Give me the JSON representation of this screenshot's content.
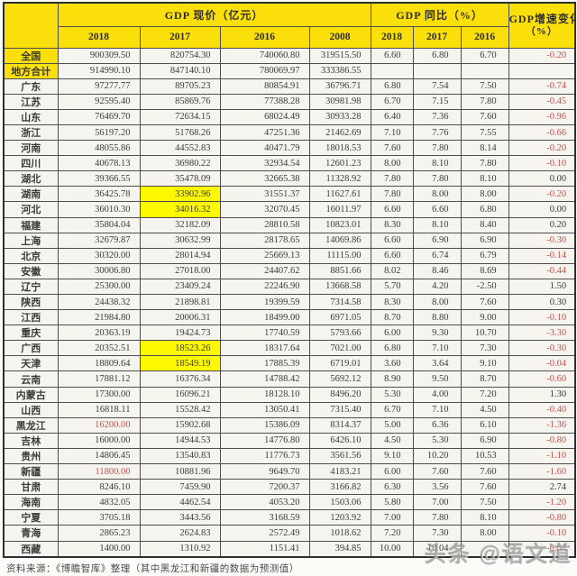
{
  "chart_data": {
    "type": "table",
    "group_headers": {
      "price": "GDP 现价（亿元）",
      "growth": "GDP 同比（%）",
      "change_line1": "GDP增速变化",
      "change_line2": "（%）"
    },
    "price_years": [
      "2018",
      "2017",
      "2016",
      "2008"
    ],
    "growth_years": [
      "2018",
      "2017",
      "2016"
    ],
    "rows": [
      {
        "region": "全国",
        "region_yellow": true,
        "values": [
          "900309.50",
          "820754.30",
          "740060.80",
          "319515.50",
          "6.60",
          "6.80",
          "6.70",
          "-0.20"
        ]
      },
      {
        "region": "地方合计",
        "region_yellow": true,
        "values": [
          "914990.10",
          "847140.10",
          "780069.97",
          "333386.55",
          "",
          "",
          "",
          ""
        ]
      },
      {
        "region": "广东",
        "values": [
          "97277.77",
          "89705.23",
          "80854.91",
          "36796.71",
          "6.80",
          "7.54",
          "7.50",
          "-0.74"
        ]
      },
      {
        "region": "江苏",
        "values": [
          "92595.40",
          "85869.76",
          "77388.28",
          "30981.98",
          "6.70",
          "7.15",
          "7.80",
          "-0.45"
        ]
      },
      {
        "region": "山东",
        "values": [
          "76469.70",
          "72634.15",
          "68024.49",
          "30933.28",
          "6.40",
          "7.36",
          "7.60",
          "-0.96"
        ]
      },
      {
        "region": "浙江",
        "values": [
          "56197.20",
          "51768.26",
          "47251.36",
          "21462.69",
          "7.10",
          "7.76",
          "7.55",
          "-0.66"
        ]
      },
      {
        "region": "河南",
        "values": [
          "48055.86",
          "44552.83",
          "40471.79",
          "18018.53",
          "7.60",
          "7.80",
          "8.14",
          "-0.20"
        ]
      },
      {
        "region": "四川",
        "values": [
          "40678.13",
          "36980.22",
          "32934.54",
          "12601.23",
          "8.00",
          "8.10",
          "7.80",
          "-0.10"
        ]
      },
      {
        "region": "湖北",
        "values": [
          "39366.55",
          "35478.09",
          "32665.38",
          "11328.92",
          "7.80",
          "7.80",
          "8.10",
          "0.00"
        ]
      },
      {
        "region": "湖南",
        "highlight": [
          1
        ],
        "values": [
          "36425.78",
          "33902.96",
          "31551.37",
          "11627.61",
          "7.80",
          "8.00",
          "8.00",
          "-0.20"
        ]
      },
      {
        "region": "河北",
        "highlight": [
          1
        ],
        "values": [
          "36010.30",
          "34016.32",
          "32070.45",
          "16011.97",
          "6.60",
          "6.60",
          "6.80",
          "0.00"
        ]
      },
      {
        "region": "福建",
        "values": [
          "35804.04",
          "32182.09",
          "28810.58",
          "10823.01",
          "8.30",
          "8.10",
          "8.40",
          "0.20"
        ]
      },
      {
        "region": "上海",
        "values": [
          "32679.87",
          "30632.99",
          "28178.65",
          "14069.86",
          "6.60",
          "6.90",
          "6.90",
          "-0.30"
        ]
      },
      {
        "region": "北京",
        "values": [
          "30320.00",
          "28014.94",
          "25669.13",
          "11115.00",
          "6.60",
          "6.74",
          "6.79",
          "-0.14"
        ]
      },
      {
        "region": "安徽",
        "values": [
          "30006.80",
          "27018.00",
          "24407.62",
          "8851.66",
          "8.02",
          "8.46",
          "8.69",
          "-0.44"
        ]
      },
      {
        "region": "辽宁",
        "values": [
          "25300.00",
          "23409.24",
          "22246.90",
          "13668.58",
          "5.70",
          "4.20",
          "-2.50",
          "1.50"
        ]
      },
      {
        "region": "陕西",
        "values": [
          "24438.32",
          "21898.81",
          "19399.59",
          "7314.58",
          "8.30",
          "8.00",
          "7.60",
          "0.30"
        ]
      },
      {
        "region": "江西",
        "values": [
          "21984.80",
          "20006.31",
          "18499.00",
          "6971.05",
          "8.70",
          "8.80",
          "9.00",
          "-0.10"
        ]
      },
      {
        "region": "重庆",
        "values": [
          "20363.19",
          "19424.73",
          "17740.59",
          "5793.66",
          "6.00",
          "9.30",
          "10.70",
          "-3.30"
        ]
      },
      {
        "region": "广西",
        "highlight": [
          1
        ],
        "values": [
          "20352.51",
          "18523.26",
          "18317.64",
          "7021.00",
          "6.80",
          "7.10",
          "7.30",
          "-0.30"
        ]
      },
      {
        "region": "天津",
        "highlight": [
          1
        ],
        "values": [
          "18809.64",
          "18549.19",
          "17885.39",
          "6719.01",
          "3.60",
          "3.64",
          "9.10",
          "-0.04"
        ]
      },
      {
        "region": "云南",
        "values": [
          "17881.12",
          "16376.34",
          "14788.42",
          "5692.12",
          "8.90",
          "9.50",
          "8.70",
          "-0.60"
        ]
      },
      {
        "region": "内蒙古",
        "values": [
          "17300.00",
          "16096.21",
          "18128.10",
          "8496.20",
          "5.30",
          "4.00",
          "7.20",
          "1.30"
        ]
      },
      {
        "region": "山西",
        "values": [
          "16818.11",
          "15528.42",
          "13050.41",
          "7315.40",
          "6.70",
          "7.10",
          "4.50",
          "-0.40"
        ]
      },
      {
        "region": "黑龙江",
        "red": [
          0
        ],
        "values": [
          "16200.00",
          "15902.68",
          "15386.09",
          "8314.37",
          "5.00",
          "6.36",
          "6.10",
          "-1.36"
        ]
      },
      {
        "region": "吉林",
        "values": [
          "16000.00",
          "14944.53",
          "14776.80",
          "6426.10",
          "4.50",
          "5.30",
          "6.90",
          "-0.80"
        ]
      },
      {
        "region": "贵州",
        "values": [
          "14806.45",
          "13540.83",
          "11776.73",
          "3561.56",
          "9.10",
          "10.20",
          "10.53",
          "-1.10"
        ]
      },
      {
        "region": "新疆",
        "red": [
          0
        ],
        "values": [
          "11800.00",
          "10881.96",
          "9649.70",
          "4183.21",
          "6.00",
          "7.60",
          "7.60",
          "-1.60"
        ]
      },
      {
        "region": "甘肃",
        "values": [
          "8246.10",
          "7459.90",
          "7200.37",
          "3166.82",
          "6.30",
          "3.56",
          "7.60",
          "2.74"
        ]
      },
      {
        "region": "海南",
        "values": [
          "4832.05",
          "4462.54",
          "4053.20",
          "1503.06",
          "5.80",
          "7.00",
          "7.50",
          "-1.20"
        ]
      },
      {
        "region": "宁夏",
        "values": [
          "3705.18",
          "3443.56",
          "3168.59",
          "1203.92",
          "7.00",
          "7.80",
          "8.10",
          "-0.80"
        ]
      },
      {
        "region": "青海",
        "values": [
          "2865.23",
          "2624.83",
          "2572.49",
          "1018.62",
          "7.20",
          "7.30",
          "8.00",
          "-0.10"
        ]
      },
      {
        "region": "西藏",
        "values": [
          "1400.00",
          "1310.92",
          "1151.41",
          "394.85",
          "10.00",
          "10.04",
          "",
          "-0.04"
        ]
      }
    ]
  },
  "source_note": "资料来源：《博瞻智库》整理（其中黑龙江和新疆的数据为预测值）",
  "watermark": "头条 @语文道",
  "colors": {
    "header_yellow": "#fbdf0a",
    "highlight_yellow": "#fdf900",
    "negative_red": "#c0534e",
    "cell_background": "#f5f4ef",
    "border": "#4e4e4e"
  }
}
